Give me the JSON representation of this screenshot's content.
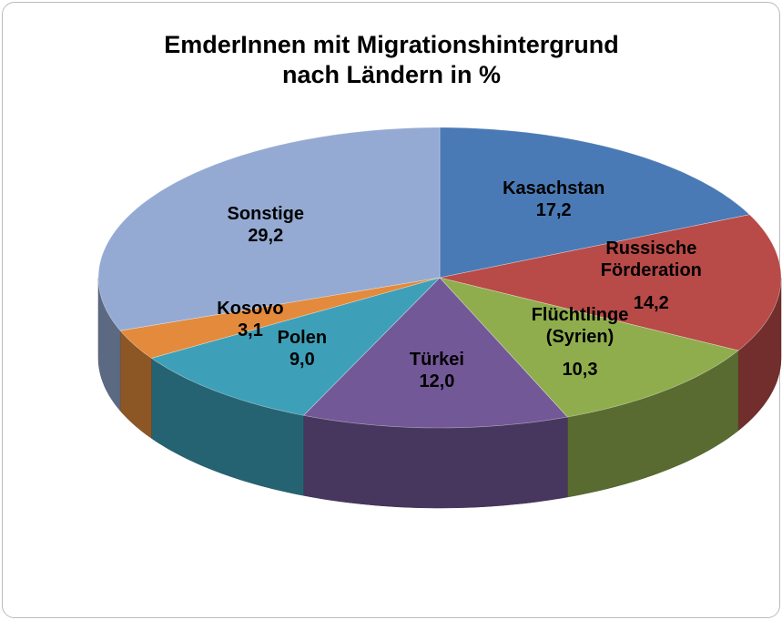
{
  "chart_data": {
    "type": "pie3d",
    "title": "EmderInnen mit Migrationshintergrund nach Ländern in %",
    "categories": [
      "Kasachstan",
      "Russische Förderation",
      "Flüchtlinge (Syrien)",
      "Türkei",
      "Polen",
      "Kosovo",
      "Sonstige"
    ],
    "values": [
      17.2,
      14.2,
      10.3,
      12.0,
      9.0,
      3.1,
      29.2
    ],
    "value_labels": [
      "17,2",
      "14,2",
      "10,3",
      "12,0",
      "9,0",
      "3,1",
      "29,2"
    ],
    "colors": [
      "#4a7ab5",
      "#b84a47",
      "#8fad4d",
      "#735897",
      "#3ea0b8",
      "#e48a3c",
      "#95aad3"
    ]
  }
}
